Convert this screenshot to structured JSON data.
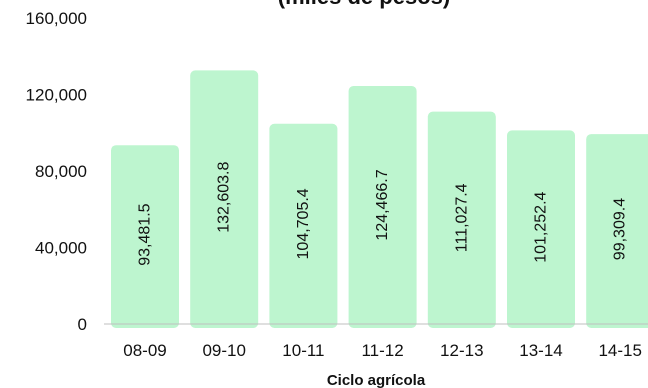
{
  "chart_data": {
    "type": "bar",
    "title": "(miles de pesos)",
    "xlabel": "Ciclo agrícola",
    "ylabel": "",
    "ylim": [
      0,
      160000
    ],
    "yticks": [
      0,
      40000,
      80000,
      120000,
      160000
    ],
    "ytick_labels": [
      "0",
      "40,000",
      "80,000",
      "120,000",
      "160,000"
    ],
    "categories": [
      "08-09",
      "09-10",
      "10-11",
      "11-12",
      "12-13",
      "13-14",
      "14-15"
    ],
    "values": [
      93481.5,
      132603.8,
      104705.4,
      124466.7,
      111027.4,
      101252.4,
      99309.4
    ],
    "data_labels": [
      "93,481.5",
      "132,603.8",
      "104,705.4",
      "124,466.7",
      "111,027.4",
      "101,252.4",
      "99,309.4"
    ],
    "bar_color": "#bdf5cf",
    "grid": false,
    "legend": "none"
  }
}
